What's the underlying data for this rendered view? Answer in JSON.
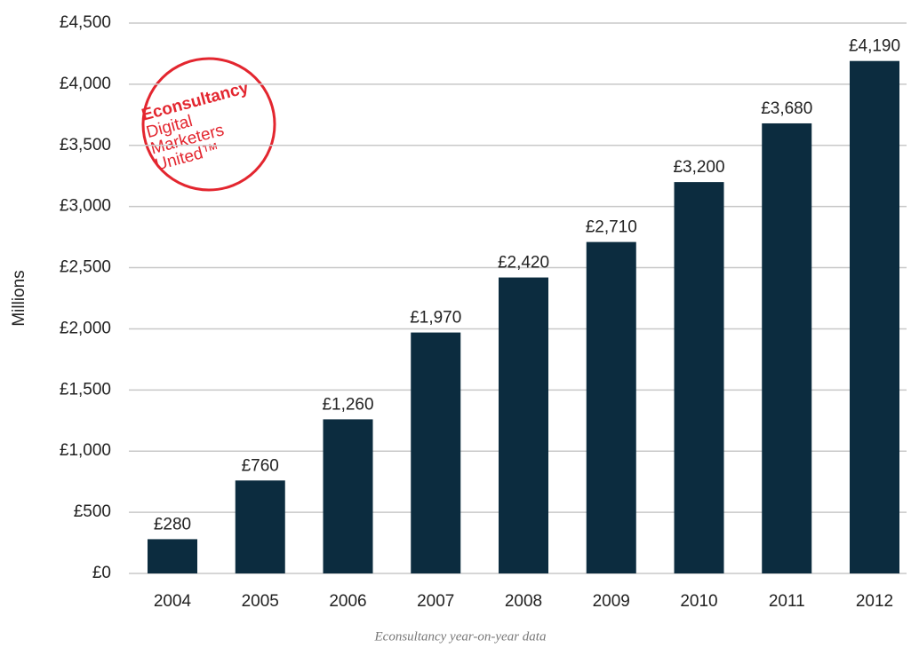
{
  "chart_data": {
    "type": "bar",
    "y_label": "Millions",
    "caption": "Econsultancy year-on-year data",
    "logo": [
      "Econsultancy",
      "Digital",
      "Marketers",
      "United™"
    ],
    "categories": [
      "2004",
      "2005",
      "2006",
      "2007",
      "2008",
      "2009",
      "2010",
      "2011",
      "2012"
    ],
    "values": [
      280,
      760,
      1260,
      1970,
      2420,
      2710,
      3200,
      3680,
      4190
    ],
    "value_labels": [
      "£280",
      "£760",
      "£1,260",
      "£1,970",
      "£2,420",
      "£2,710",
      "£3,200",
      "£3,680",
      "£4,190"
    ],
    "color": "#0c2c3f",
    "ylim": [
      0,
      4500
    ],
    "yticks": [
      {
        "value": 0,
        "label": "£0"
      },
      {
        "value": 500,
        "label": "£500"
      },
      {
        "value": 1000,
        "label": "£1,000"
      },
      {
        "value": 1500,
        "label": "£1,500"
      },
      {
        "value": 2000,
        "label": "£2,000"
      },
      {
        "value": 2500,
        "label": "£2,500"
      },
      {
        "value": 3000,
        "label": "£3,000"
      },
      {
        "value": 3500,
        "label": "£3,500"
      },
      {
        "value": 4000,
        "label": "£4,000"
      },
      {
        "value": 4500,
        "label": "£4,500"
      }
    ],
    "grid": true
  }
}
